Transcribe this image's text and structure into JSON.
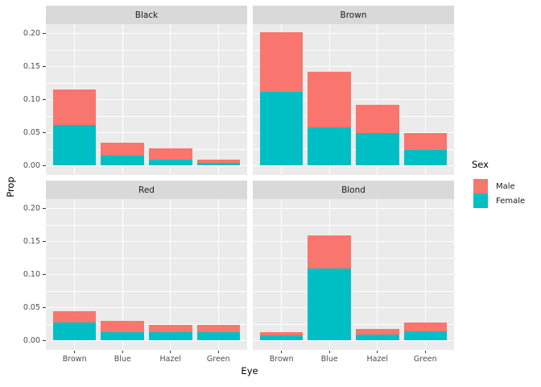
{
  "chart_data": {
    "type": "bar",
    "stacked": true,
    "title": "",
    "xlabel": "Eye",
    "ylabel": "Prop",
    "categories": [
      "Brown",
      "Blue",
      "Hazel",
      "Green"
    ],
    "y_ticks": [
      {
        "value": 0.0,
        "label": "0.00"
      },
      {
        "value": 0.05,
        "label": "0.05"
      },
      {
        "value": 0.1,
        "label": "0.10"
      },
      {
        "value": 0.15,
        "label": "0.15"
      },
      {
        "value": 0.2,
        "label": "0.20"
      }
    ],
    "ylim": [
      -0.0105,
      0.2115
    ],
    "grid": true,
    "facets": [
      {
        "label": "Black",
        "series": [
          {
            "name": "Male",
            "values": [
              0.0541,
              0.0186,
              0.0169,
              0.0051
            ]
          },
          {
            "name": "Female",
            "values": [
              0.0608,
              0.0152,
              0.0084,
              0.0034
            ]
          }
        ]
      },
      {
        "label": "Brown",
        "series": [
          {
            "name": "Male",
            "values": [
              0.0895,
              0.0845,
              0.0422,
              0.0253
            ]
          },
          {
            "name": "Female",
            "values": [
              0.1115,
              0.0574,
              0.049,
              0.0236
            ]
          }
        ]
      },
      {
        "label": "Red",
        "series": [
          {
            "name": "Male",
            "values": [
              0.0169,
              0.0169,
              0.0118,
              0.0118
            ]
          },
          {
            "name": "Female",
            "values": [
              0.027,
              0.0118,
              0.0118,
              0.0118
            ]
          }
        ]
      },
      {
        "label": "Blond",
        "series": [
          {
            "name": "Male",
            "values": [
              0.0051,
              0.0507,
              0.0084,
              0.0135
            ]
          },
          {
            "name": "Female",
            "values": [
              0.0068,
              0.1081,
              0.0084,
              0.0135
            ]
          }
        ]
      }
    ],
    "legend": {
      "title": "Sex",
      "position": "right",
      "entries": [
        {
          "label": "Male",
          "color": "#F8766D"
        },
        {
          "label": "Female",
          "color": "#00BFC4"
        }
      ]
    },
    "colors": {
      "panel_bg": "#EBEBEB",
      "strip_bg": "#D9D9D9",
      "grid": "#FFFFFF",
      "tick_text": "#4D4D4D",
      "male": "#F8766D",
      "female": "#00BFC4"
    }
  }
}
